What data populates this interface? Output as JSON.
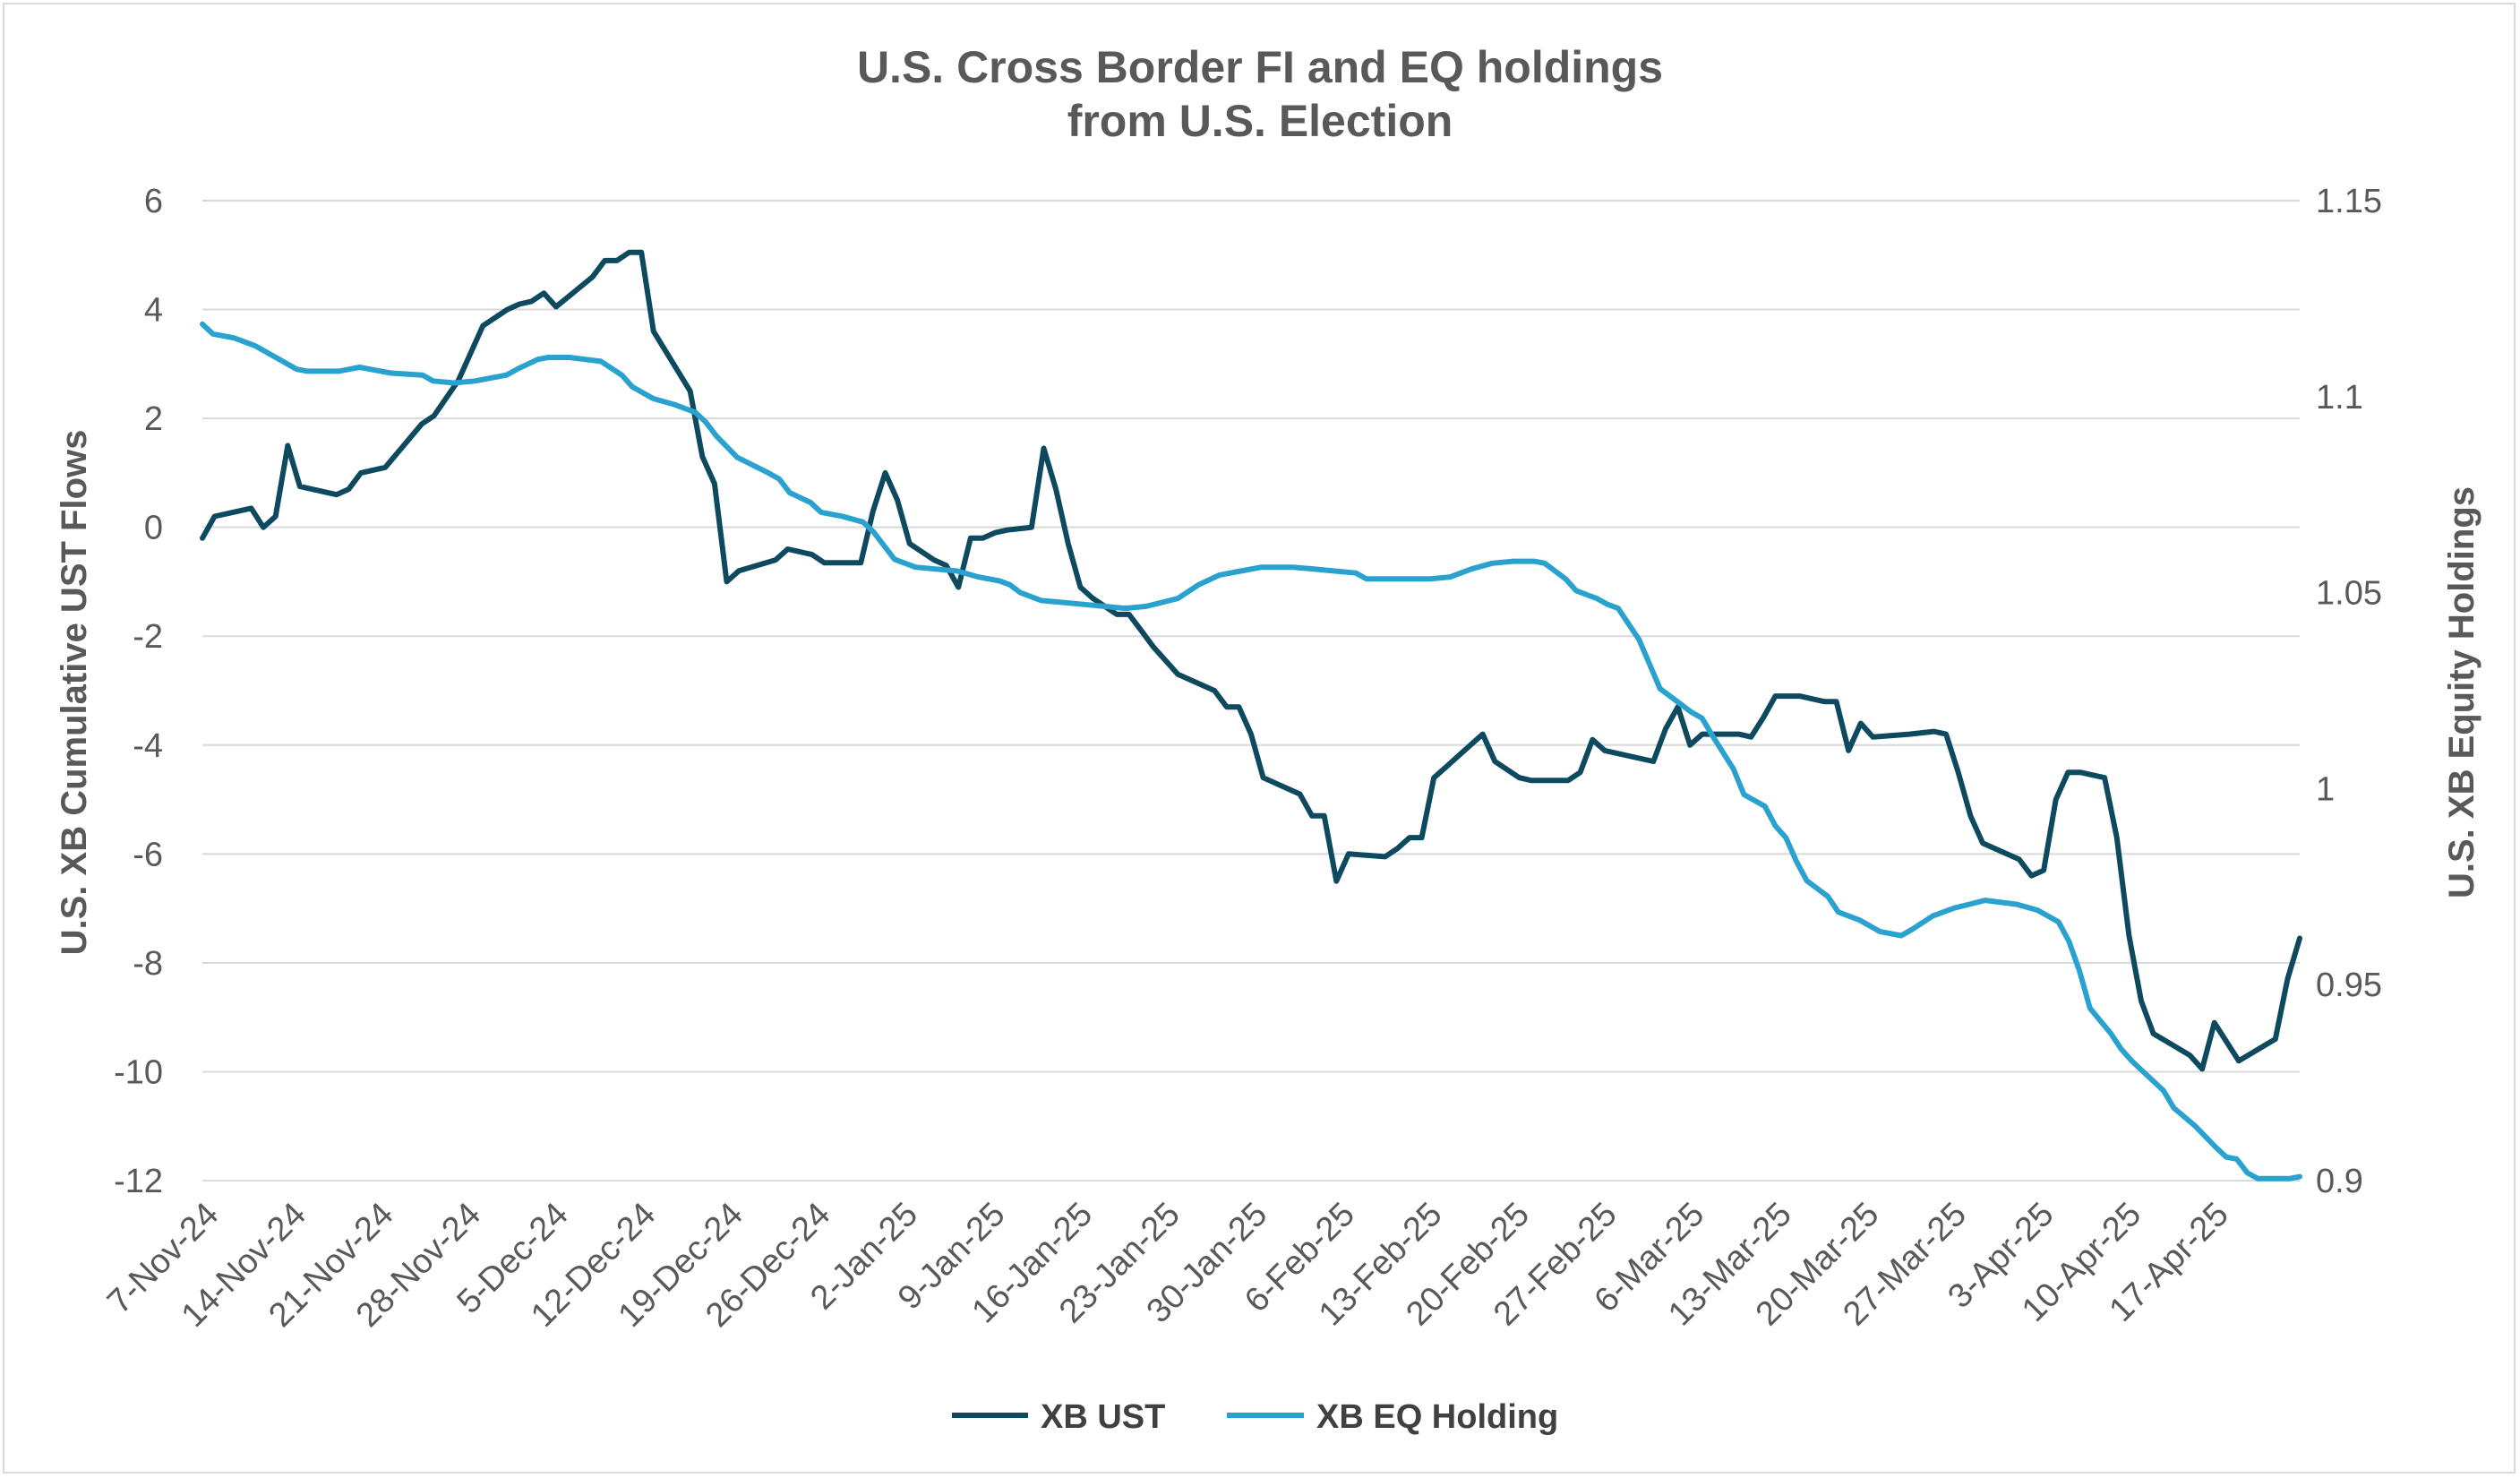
{
  "chart_data": {
    "type": "line",
    "title": [
      "U.S. Cross Border FI and EQ holdings",
      "from U.S. Election"
    ],
    "y_left_label": "U.S. XB Cumulative UST Flows",
    "y_right_label": "U.S. XB Equity Holdings",
    "y_left_lim": [
      -12,
      6
    ],
    "y_left_ticks": [
      6,
      4,
      2,
      0,
      -2,
      -4,
      -6,
      -8,
      -10,
      -12
    ],
    "y_right_lim": [
      0.9,
      1.15
    ],
    "y_right_ticks": [
      1.15,
      1.1,
      1.05,
      1,
      0.95,
      0.9
    ],
    "x_tick_labels": [
      "7-Nov-24",
      "14-Nov-24",
      "21-Nov-24",
      "28-Nov-24",
      "5-Dec-24",
      "12-Dec-24",
      "19-Dec-24",
      "26-Dec-24",
      "2-Jan-25",
      "9-Jan-25",
      "16-Jan-25",
      "23-Jan-25",
      "30-Jan-25",
      "6-Feb-25",
      "13-Feb-25",
      "20-Feb-25",
      "27-Feb-25",
      "6-Mar-25",
      "13-Mar-25",
      "20-Mar-25",
      "27-Mar-25",
      "3-Apr-25",
      "10-Apr-25",
      "17-Apr-25"
    ],
    "x_range_days": [
      0,
      169
    ],
    "grid": "horizontal",
    "legend": "bottom-center",
    "series": [
      {
        "name": "XB UST",
        "axis": "left",
        "color": "#0e4a5f",
        "points": [
          [
            0,
            -0.2
          ],
          [
            1,
            0.2
          ],
          [
            4,
            0.35
          ],
          [
            5,
            0
          ],
          [
            6,
            0.2
          ],
          [
            7,
            1.5
          ],
          [
            8,
            0.75
          ],
          [
            11,
            0.6
          ],
          [
            12,
            0.7
          ],
          [
            13,
            1.0
          ],
          [
            15,
            1.1
          ],
          [
            18,
            1.9
          ],
          [
            19,
            2.05
          ],
          [
            21,
            2.7
          ],
          [
            23,
            3.7
          ],
          [
            25,
            4.0
          ],
          [
            26,
            4.1
          ],
          [
            27,
            4.15
          ],
          [
            28,
            4.3
          ],
          [
            29,
            4.05
          ],
          [
            32,
            4.6
          ],
          [
            33,
            4.9
          ],
          [
            34,
            4.9
          ],
          [
            35,
            5.05
          ],
          [
            36,
            5.05
          ],
          [
            37,
            3.6
          ],
          [
            40,
            2.5
          ],
          [
            41,
            1.3
          ],
          [
            42,
            0.8
          ],
          [
            43,
            -1.0
          ],
          [
            44,
            -0.8
          ],
          [
            47,
            -0.6
          ],
          [
            48,
            -0.4
          ],
          [
            50,
            -0.5
          ],
          [
            51,
            -0.65
          ],
          [
            54,
            -0.65
          ],
          [
            55,
            0.3
          ],
          [
            56,
            1.0
          ],
          [
            57,
            0.5
          ],
          [
            58,
            -0.3
          ],
          [
            60,
            -0.6
          ],
          [
            61,
            -0.7
          ],
          [
            62,
            -1.1
          ],
          [
            63,
            -0.2
          ],
          [
            64,
            -0.2
          ],
          [
            65,
            -0.1
          ],
          [
            66,
            -0.05
          ],
          [
            68,
            0
          ],
          [
            69,
            1.45
          ],
          [
            70,
            0.7
          ],
          [
            71,
            -0.3
          ],
          [
            72,
            -1.1
          ],
          [
            73,
            -1.3
          ],
          [
            75,
            -1.6
          ],
          [
            76,
            -1.6
          ],
          [
            77,
            -1.9
          ],
          [
            78,
            -2.2
          ],
          [
            80,
            -2.7
          ],
          [
            83,
            -3.0
          ],
          [
            84,
            -3.3
          ],
          [
            85,
            -3.3
          ],
          [
            86,
            -3.8
          ],
          [
            87,
            -4.6
          ],
          [
            89,
            -4.8
          ],
          [
            90,
            -4.9
          ],
          [
            91,
            -5.3
          ],
          [
            92,
            -5.3
          ],
          [
            93,
            -6.5
          ],
          [
            94,
            -6.0
          ],
          [
            97,
            -6.05
          ],
          [
            98,
            -5.9
          ],
          [
            99,
            -5.7
          ],
          [
            100,
            -5.7
          ],
          [
            101,
            -4.6
          ],
          [
            102,
            -4.4
          ],
          [
            103,
            -4.2
          ],
          [
            105,
            -3.8
          ],
          [
            106,
            -4.3
          ],
          [
            108,
            -4.6
          ],
          [
            109,
            -4.65
          ],
          [
            112,
            -4.65
          ],
          [
            113,
            -4.5
          ],
          [
            114,
            -3.9
          ],
          [
            115,
            -4.1
          ],
          [
            118,
            -4.25
          ],
          [
            119,
            -4.3
          ],
          [
            120,
            -3.7
          ],
          [
            121,
            -3.3
          ],
          [
            122,
            -4.0
          ],
          [
            123,
            -3.8
          ],
          [
            126,
            -3.8
          ],
          [
            127,
            -3.85
          ],
          [
            128,
            -3.5
          ],
          [
            129,
            -3.1
          ],
          [
            131,
            -3.1
          ],
          [
            133,
            -3.2
          ],
          [
            134,
            -3.2
          ],
          [
            135,
            -4.1
          ],
          [
            136,
            -3.6
          ],
          [
            137,
            -3.85
          ],
          [
            140,
            -3.8
          ],
          [
            142,
            -3.75
          ],
          [
            143,
            -3.8
          ],
          [
            144,
            -4.5
          ],
          [
            145,
            -5.3
          ],
          [
            146,
            -5.8
          ],
          [
            149,
            -6.1
          ],
          [
            150,
            -6.4
          ],
          [
            151,
            -6.3
          ],
          [
            152,
            -5.0
          ],
          [
            153,
            -4.5
          ],
          [
            154,
            -4.5
          ],
          [
            156,
            -4.6
          ],
          [
            157,
            -5.7
          ],
          [
            158,
            -7.5
          ],
          [
            159,
            -8.7
          ],
          [
            160,
            -9.3
          ],
          [
            163,
            -9.7
          ],
          [
            164,
            -9.95
          ],
          [
            165,
            -9.1
          ],
          [
            167,
            -9.8
          ],
          [
            170,
            -9.4
          ],
          [
            171,
            -8.3
          ],
          [
            172,
            -7.55
          ]
        ]
      },
      {
        "name": "XB EQ Holding",
        "axis": "right",
        "color": "#2aa2d0",
        "points": [
          [
            0,
            1.1185
          ],
          [
            1,
            1.116
          ],
          [
            3,
            1.115
          ],
          [
            5,
            1.113
          ],
          [
            7,
            1.11
          ],
          [
            9,
            1.107
          ],
          [
            10,
            1.1065
          ],
          [
            13,
            1.1065
          ],
          [
            15,
            1.1075
          ],
          [
            16,
            1.107
          ],
          [
            18,
            1.106
          ],
          [
            21,
            1.1055
          ],
          [
            22,
            1.104
          ],
          [
            24,
            1.1035
          ],
          [
            26,
            1.104
          ],
          [
            29,
            1.1055
          ],
          [
            30,
            1.107
          ],
          [
            32,
            1.1095
          ],
          [
            33,
            1.11
          ],
          [
            35,
            1.11
          ],
          [
            38,
            1.109
          ],
          [
            40,
            1.1055
          ],
          [
            41,
            1.1025
          ],
          [
            43,
            1.0995
          ],
          [
            45,
            1.098
          ],
          [
            47,
            1.096
          ],
          [
            48,
            1.0935
          ],
          [
            49,
            1.09
          ],
          [
            51,
            1.0845
          ],
          [
            54,
            1.0805
          ],
          [
            55,
            1.079
          ],
          [
            56,
            1.0755
          ],
          [
            58,
            1.073
          ],
          [
            59,
            1.0705
          ],
          [
            61,
            1.0695
          ],
          [
            63,
            1.068
          ],
          [
            64,
            1.0655
          ],
          [
            66,
            1.0585
          ],
          [
            68,
            1.0565
          ],
          [
            72,
            1.0555
          ],
          [
            74,
            1.054
          ],
          [
            76,
            1.053
          ],
          [
            77,
            1.052
          ],
          [
            78,
            1.05
          ],
          [
            80,
            1.048
          ],
          [
            82,
            1.0475
          ],
          [
            84,
            1.047
          ],
          [
            86,
            1.0465
          ],
          [
            88,
            1.046
          ],
          [
            90,
            1.0465
          ],
          [
            93,
            1.0485
          ],
          [
            95,
            1.052
          ],
          [
            97,
            1.0545
          ],
          [
            99,
            1.0555
          ],
          [
            101,
            1.0565
          ],
          [
            103,
            1.0565
          ],
          [
            104,
            1.0565
          ],
          [
            106,
            1.056
          ],
          [
            108,
            1.0555
          ],
          [
            110,
            1.055
          ],
          [
            111,
            1.0535
          ],
          [
            113,
            1.0535
          ],
          [
            117,
            1.0535
          ],
          [
            119,
            1.054
          ],
          [
            121,
            1.056
          ],
          [
            123,
            1.0575
          ],
          [
            125,
            1.058
          ],
          [
            127,
            1.058
          ],
          [
            128,
            1.0575
          ],
          [
            130,
            1.0535
          ],
          [
            131,
            1.0505
          ],
          [
            133,
            1.0485
          ],
          [
            134,
            1.047
          ],
          [
            135,
            1.046
          ],
          [
            137,
            1.038
          ],
          [
            139,
            1.0255
          ],
          [
            141,
            1.0215
          ],
          [
            142,
            1.0195
          ],
          [
            143,
            1.018
          ],
          [
            144,
            1.0135
          ],
          [
            146,
            1.005
          ],
          [
            147,
            0.9985
          ],
          [
            149,
            0.9955
          ],
          [
            150,
            0.9905
          ],
          [
            151,
            0.9875
          ],
          [
            152,
            0.9815
          ],
          [
            153,
            0.9765
          ],
          [
            155,
            0.9725
          ],
          [
            156,
            0.9685
          ],
          [
            158,
            0.9665
          ],
          [
            160,
            0.9635
          ],
          [
            162,
            0.9625
          ],
          [
            163,
            0.964
          ],
          [
            165,
            0.9675
          ],
          [
            167,
            0.9695
          ],
          [
            170,
            0.9715
          ],
          [
            173,
            0.9705
          ],
          [
            175,
            0.969
          ],
          [
            177,
            0.966
          ],
          [
            178,
            0.961
          ],
          [
            179,
            0.9535
          ],
          [
            180,
            0.944
          ],
          [
            182,
            0.9375
          ],
          [
            183,
            0.9335
          ],
          [
            184,
            0.9305
          ],
          [
            185,
            0.928
          ],
          [
            187,
            0.923
          ],
          [
            188,
            0.9185
          ],
          [
            190,
            0.914
          ],
          [
            192,
            0.9085
          ],
          [
            193,
            0.906
          ],
          [
            194,
            0.9055
          ],
          [
            195,
            0.902
          ],
          [
            196,
            0.9005
          ],
          [
            199,
            0.9005
          ],
          [
            200,
            0.901
          ]
        ]
      }
    ]
  }
}
